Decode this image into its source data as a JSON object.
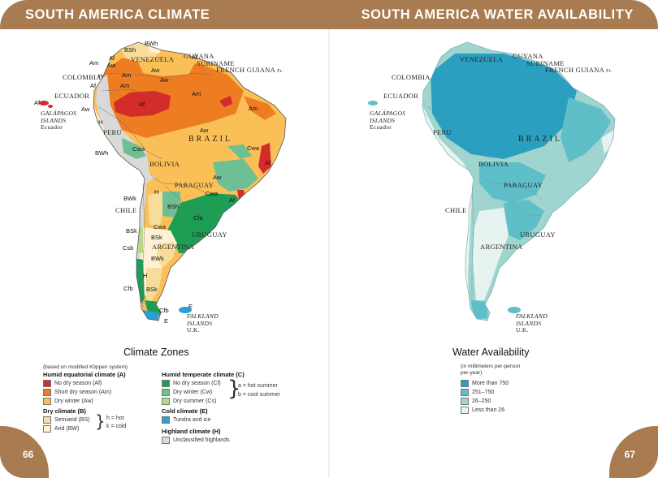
{
  "pages": {
    "left": {
      "title": "SOUTH AMERICA CLIMATE",
      "page_number": "66"
    },
    "right": {
      "title": "SOUTH AMERICA WATER AVAILABILITY",
      "page_number": "67"
    }
  },
  "climate_map": {
    "countries": {
      "venezuela": "VENEZUELA",
      "guyana": "GUYANA",
      "suriname": "SURINAME",
      "french_guiana": "FRENCH GUIANA",
      "french_guiana_note": "Fr.",
      "colombia": "COLOMBIA",
      "ecuador": "ECUADOR",
      "peru": "PERU",
      "brazil": "BRAZIL",
      "bolivia": "BOLIVIA",
      "paraguay": "PARAGUAY",
      "chile": "CHILE",
      "argentina": "ARGENTINA",
      "uruguay": "URUGUAY"
    },
    "galapagos": {
      "line1": "GALÁPAGOS",
      "line2": "ISLANDS",
      "line3": "Ecuador"
    },
    "falkland": {
      "line1": "FALKLAND",
      "line2": "ISLANDS",
      "line3": "U.K."
    },
    "zone_codes": {
      "bsh_north": "BSh",
      "bwh_north": "BWh",
      "am_nw": "Am",
      "af_nw": "Af",
      "am_col": "Am",
      "aw_col": "Aw",
      "aw_ven": "Aw",
      "h_col": "H",
      "af_col": "Af",
      "af_gal": "Af",
      "aw_ecu": "Aw",
      "h_ecu": "H",
      "am_amaz": "Am",
      "af_amaz": "Af",
      "af_guiana": "Af",
      "am_guiana": "Am",
      "am_east": "Am",
      "aw_brazil": "Aw",
      "aw_north": "Aw",
      "aw_south": "Aw",
      "cwa_peru": "Cwa",
      "cwa_east": "Cwa",
      "af_east": "Af",
      "bwh_peru": "BWh",
      "h_bolivia": "H",
      "bwk_chile": "BWk",
      "cwa_para": "Cwa",
      "af_se": "Af",
      "bsh_arg": "BSh",
      "cfa_arg": "Cfa",
      "cwa_arg": "Cwa",
      "bsk_chile": "BSk",
      "bsk_arg": "BSk",
      "csb_chile": "Csb",
      "bwk_arg": "BWk",
      "h_patag": "H",
      "cfb_chile": "Cfb",
      "bsk_south": "BSk",
      "cfb_tip": "Cfb",
      "e_tip": "E",
      "e_island": "E"
    }
  },
  "water_map": {
    "countries": {
      "venezuela": "VENEZUELA",
      "guyana": "GUYANA",
      "suriname": "SURINAME",
      "french_guiana": "FRENCH GUIANA",
      "french_guiana_note": "Fr.",
      "colombia": "COLOMBIA",
      "ecuador": "ECUADOR",
      "peru": "PERU",
      "brazil": "BRAZIL",
      "bolivia": "BOLIVIA",
      "paraguay": "PARAGUAY",
      "chile": "CHILE",
      "argentina": "ARGENTINA",
      "uruguay": "URUGUAY"
    },
    "galapagos": {
      "line1": "GALÁPAGOS",
      "line2": "ISLANDS",
      "line3": "Ecuador"
    },
    "falkland": {
      "line1": "FALKLAND",
      "line2": "ISLANDS",
      "line3": "U.K."
    }
  },
  "climate_legend": {
    "title": "Climate Zones",
    "subtitle": "(based on modified Köppen system)",
    "groups": {
      "humid_equatorial": {
        "heading": "Humid equatorial climate (A)",
        "items": [
          {
            "label": "No dry season (Af)",
            "color": "#d42b2b"
          },
          {
            "label": "Short dry season (Am)",
            "color": "#ee7d22"
          },
          {
            "label": "Dry winter (Aw)",
            "color": "#fbbf57"
          }
        ]
      },
      "dry": {
        "heading": "Dry climate (B)",
        "items": [
          {
            "label": "Semiarid (BS)",
            "color": "#f8dd9a"
          },
          {
            "label": "Arid (BW)",
            "color": "#fdf0d6"
          }
        ],
        "note1": "h = hot",
        "note2": "k = cold"
      },
      "humid_temperate": {
        "heading": "Humid temperate climate (C)",
        "items": [
          {
            "label": "No dry season (Cf)",
            "color": "#1e9e55"
          },
          {
            "label": "Dry winter (Cw)",
            "color": "#6fbf95"
          },
          {
            "label": "Dry summer (Cs)",
            "color": "#b9d98a"
          }
        ],
        "note1": "a = hot summer",
        "note2": "b = cool summer"
      },
      "cold": {
        "heading": "Cold climate (E)",
        "items": [
          {
            "label": "Tundra and ice",
            "color": "#2a9fd8"
          }
        ]
      },
      "highland": {
        "heading": "Highland climate (H)",
        "items": [
          {
            "label": "Unclassified highlands",
            "color": "#d9d9d9"
          }
        ]
      }
    }
  },
  "water_legend": {
    "title": "Water Availability",
    "subtitle_line1": "(in millimeters per-person",
    "subtitle_line2": "per-year)",
    "items": [
      {
        "label": "More than 750",
        "color": "#2a9fbf"
      },
      {
        "label": "251–750",
        "color": "#5fbfc9"
      },
      {
        "label": "26–250",
        "color": "#9fd4cf"
      },
      {
        "label": "Less than 26",
        "color": "#e6f3f1"
      }
    ]
  }
}
